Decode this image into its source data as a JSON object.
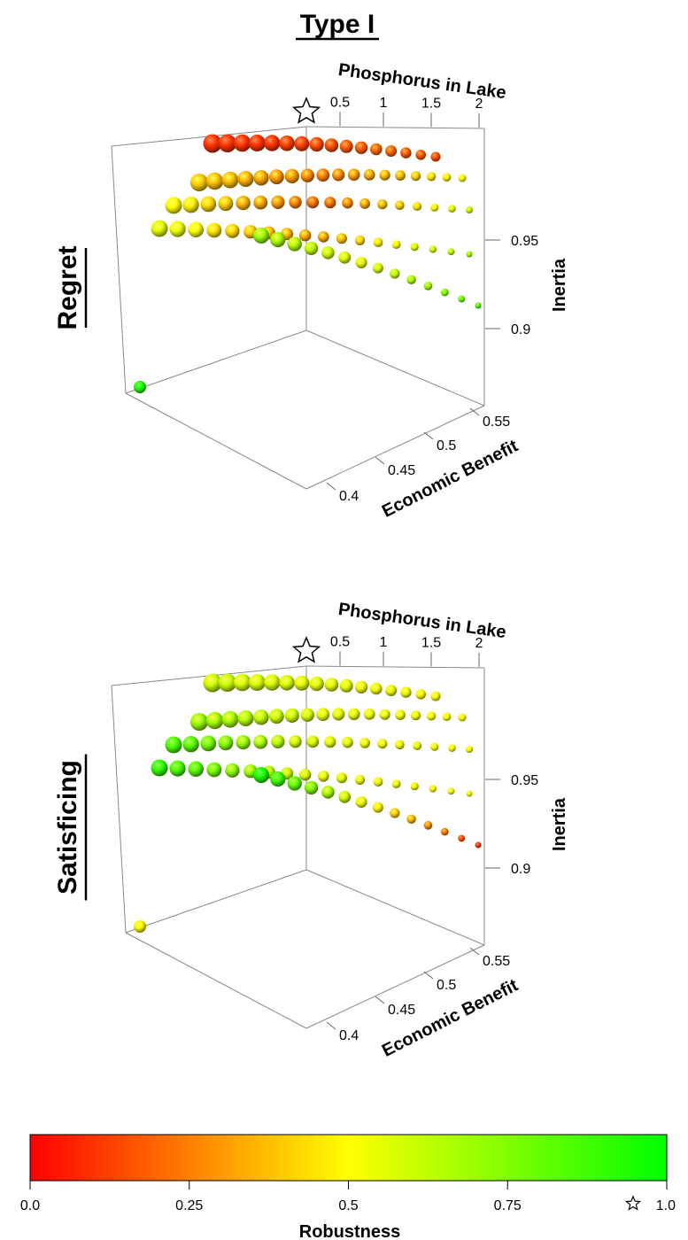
{
  "title": "Type I",
  "chart_data": [
    {
      "type": "scatter",
      "panel_label": "Regret",
      "axes": {
        "x": {
          "label": "Phosphorus in Lake",
          "ticks": [
            "0.5",
            "1",
            "1.5",
            "2"
          ]
        },
        "y": {
          "label": "Economic Benefit",
          "ticks": [
            "0.4",
            "0.45",
            "0.5",
            "0.55"
          ]
        },
        "z": {
          "label": "Inertia",
          "ticks": [
            "0.9",
            "0.95"
          ]
        }
      },
      "ideal_marker": "star",
      "point_groups": [
        {
          "name": "row-1",
          "r": [
            0.1,
            0.1,
            0.15,
            0.2,
            0.15
          ],
          "phosphorus": [
            0.3,
            2.0
          ],
          "count": 16
        },
        {
          "name": "row-2",
          "r": [
            0.4,
            0.25,
            0.5
          ],
          "phosphorus": [
            0.3,
            2.0
          ],
          "count": 18
        },
        {
          "name": "row-3",
          "r": [
            0.5,
            0.2,
            0.6
          ],
          "phosphorus": [
            0.3,
            2.0
          ],
          "count": 18
        },
        {
          "name": "row-4",
          "r": [
            0.55,
            0.3,
            0.7
          ],
          "phosphorus": [
            0.3,
            2.0
          ],
          "count": 18
        },
        {
          "name": "low-inertia",
          "r": [
            0.7,
            0.55,
            0.85
          ],
          "phosphorus": [
            0.3,
            2.0
          ],
          "count": 14
        }
      ],
      "outlier_robustness": 0.95
    },
    {
      "type": "scatter",
      "panel_label": "Satisficing",
      "axes": {
        "x": {
          "label": "Phosphorus in Lake",
          "ticks": [
            "0.5",
            "1",
            "1.5",
            "2"
          ]
        },
        "y": {
          "label": "Economic Benefit",
          "ticks": [
            "0.4",
            "0.45",
            "0.5",
            "0.55"
          ]
        },
        "z": {
          "label": "Inertia",
          "ticks": [
            "0.9",
            "0.95"
          ]
        }
      },
      "ideal_marker": "star",
      "point_groups": [
        {
          "name": "row-1",
          "r": [
            0.6,
            0.55,
            0.5
          ],
          "phosphorus": [
            0.3,
            2.0
          ],
          "count": 16
        },
        {
          "name": "row-2",
          "r": [
            0.7,
            0.55,
            0.5
          ],
          "phosphorus": [
            0.3,
            2.0
          ],
          "count": 18
        },
        {
          "name": "row-3",
          "r": [
            0.85,
            0.55,
            0.5
          ],
          "phosphorus": [
            0.3,
            2.0
          ],
          "count": 18
        },
        {
          "name": "row-4",
          "r": [
            0.9,
            0.55,
            0.5
          ],
          "phosphorus": [
            0.3,
            2.0
          ],
          "count": 18
        },
        {
          "name": "low-inertia",
          "r": [
            0.95,
            0.5,
            0.1
          ],
          "phosphorus": [
            0.3,
            2.0
          ],
          "count": 14
        }
      ],
      "outlier_robustness": 0.5
    }
  ],
  "colorbar": {
    "label": "Robustness",
    "ticks": [
      "0.0",
      "0.25",
      "0.5",
      "0.75",
      "1.0"
    ],
    "star_at": "1.0",
    "colors": [
      "#ff0000",
      "#ffff00",
      "#00ff00"
    ]
  }
}
